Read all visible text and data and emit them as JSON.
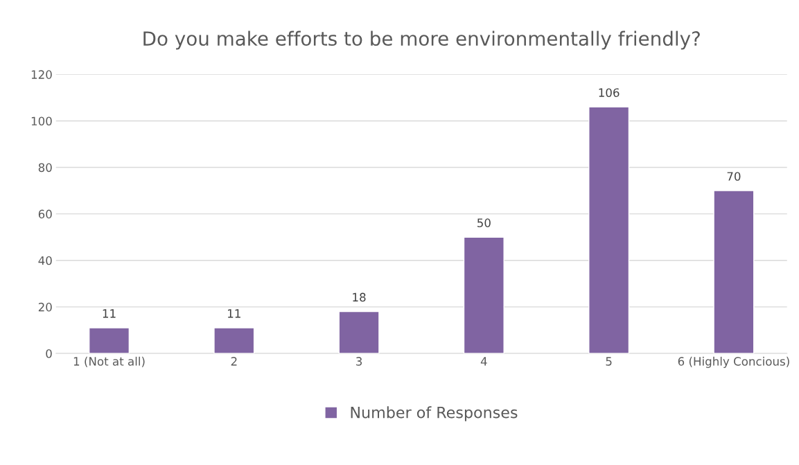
{
  "chart_data": {
    "type": "bar",
    "title": "Do you make efforts to be more environmentally friendly?",
    "categories": [
      "1 (Not at all)",
      "2",
      "3",
      "4",
      "5",
      "6 (Highly Concious)"
    ],
    "series": [
      {
        "name": "Number of Responses",
        "color": "#8064a2",
        "values": [
          11,
          11,
          18,
          50,
          106,
          70
        ]
      }
    ],
    "ylim": [
      0,
      120
    ],
    "yticks": [
      0,
      20,
      40,
      60,
      80,
      100,
      120
    ],
    "grid": "y",
    "legend": "bottom",
    "data_labels": true
  }
}
